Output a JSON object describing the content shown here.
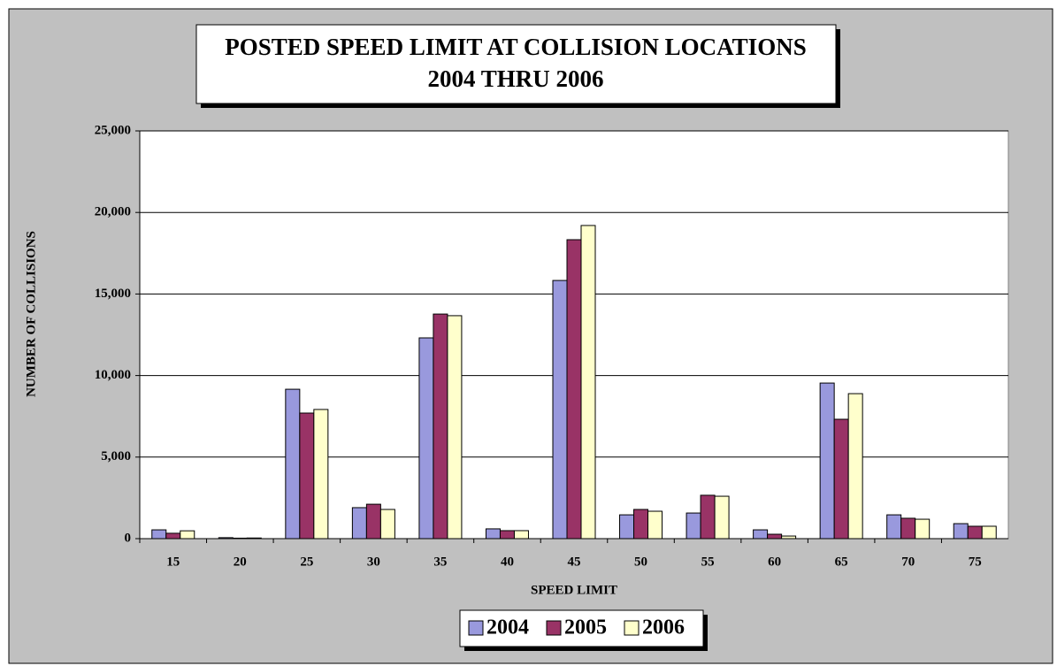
{
  "chart_data": {
    "type": "bar",
    "title": "POSTED SPEED LIMIT AT COLLISION LOCATIONS",
    "subtitle": "2004 THRU 2006",
    "x_label": "SPEED LIMIT",
    "y_label": "NUMBER OF COLLISIONS",
    "categories": [
      "15",
      "20",
      "25",
      "30",
      "35",
      "40",
      "45",
      "50",
      "55",
      "60",
      "65",
      "70",
      "75"
    ],
    "series": [
      {
        "name": "2004",
        "color": "#9999dd",
        "values": [
          540,
          60,
          9160,
          1900,
          12310,
          600,
          15830,
          1460,
          1570,
          540,
          9540,
          1460,
          920
        ]
      },
      {
        "name": "2005",
        "color": "#993366",
        "values": [
          330,
          30,
          7700,
          2110,
          13770,
          490,
          18330,
          1790,
          2660,
          270,
          7320,
          1250,
          760
        ]
      },
      {
        "name": "2006",
        "color": "#ffffcc",
        "values": [
          480,
          40,
          7920,
          1790,
          13670,
          490,
          19200,
          1680,
          2600,
          160,
          8890,
          1190,
          760
        ]
      }
    ],
    "ylim": [
      0,
      25000
    ],
    "yticks": [
      0,
      {
        "value": 5000,
        "label": "5,000"
      },
      {
        "value": 10000,
        "label": "10,000"
      },
      {
        "value": 15000,
        "label": "15,000"
      },
      {
        "value": 20000,
        "label": "20,000"
      },
      {
        "value": 25000,
        "label": "25,000"
      }
    ],
    "grid": true,
    "legend": "bottom"
  }
}
